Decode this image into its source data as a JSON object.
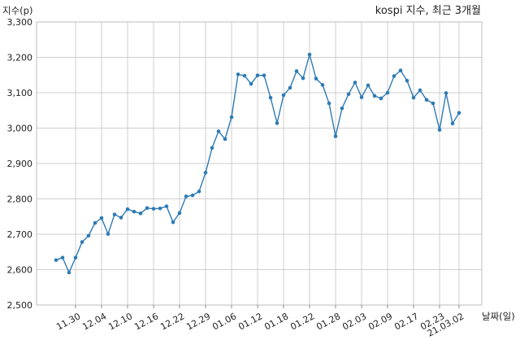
{
  "chart_data": {
    "type": "line",
    "title": "kospi 지수, 최근 3개월",
    "ylabel": "지수(p)",
    "xlabel": "날짜(일)",
    "ylim": [
      2500,
      3300
    ],
    "yticks": [
      2500,
      2600,
      2700,
      2800,
      2900,
      3000,
      3100,
      3200,
      3300
    ],
    "ytick_labels": [
      "2,500",
      "2,600",
      "2,700",
      "2,800",
      "2,900",
      "3,000",
      "3,100",
      "3,200",
      "3,300"
    ],
    "xtick_labels": [
      "11.30",
      "12.04",
      "12.10",
      "12.16",
      "12.22",
      "12.29",
      "01.06",
      "01.12",
      "01.18",
      "01.22",
      "01.28",
      "02.03",
      "02.09",
      "02.17",
      "02.23",
      "21.03.02"
    ],
    "xtick_indices": [
      3,
      7,
      11,
      15,
      19,
      23,
      27,
      31,
      35,
      39,
      43,
      47,
      51,
      55,
      59,
      62
    ],
    "grid": true,
    "line_color": "#2e7bb4",
    "series": [
      {
        "values": [
          2627,
          2634,
          2592,
          2634,
          2678,
          2696,
          2732,
          2746,
          2701,
          2756,
          2747,
          2771,
          2764,
          2759,
          2774,
          2772,
          2773,
          2779,
          2734,
          2760,
          2807,
          2810,
          2821,
          2874,
          2944,
          2991,
          2969,
          3031,
          3152,
          3148,
          3125,
          3149,
          3149,
          3086,
          3014,
          3093,
          3114,
          3161,
          3141,
          3208,
          3140,
          3122,
          3070,
          2977,
          3056,
          3096,
          3129,
          3087,
          3121,
          3091,
          3084,
          3100,
          3147,
          3163,
          3134,
          3086,
          3107,
          3080,
          3070,
          2995,
          3099,
          3013,
          3043
        ]
      }
    ]
  }
}
